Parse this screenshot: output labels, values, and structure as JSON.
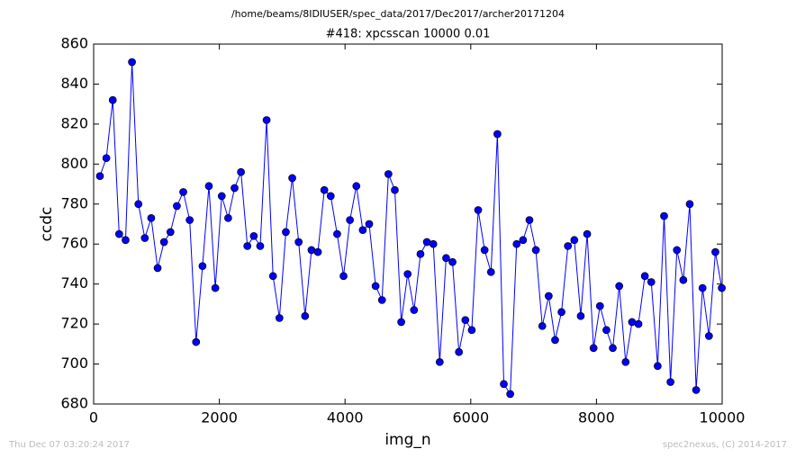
{
  "chart_data": {
    "type": "line",
    "title": "/home/beams/8IDIUSER/spec_data/2017/Dec2017/archer20171204",
    "subtitle": "#418: xpcsscan 10000 0.01",
    "xlabel": "img_n",
    "ylabel": "ccdc",
    "footer_left": "Thu Dec 07 03:20:24 2017",
    "footer_right": "spec2nexus, (C) 2014-2017",
    "color": "#0000ff",
    "marker": "circle",
    "x": [
      100,
      202,
      304,
      406,
      508,
      610,
      712,
      814,
      916,
      1018,
      1120,
      1222,
      1324,
      1426,
      1528,
      1630,
      1732,
      1834,
      1936,
      2038,
      2140,
      2242,
      2344,
      2446,
      2548,
      2650,
      2752,
      2854,
      2956,
      3058,
      3160,
      3262,
      3364,
      3466,
      3568,
      3670,
      3772,
      3874,
      3976,
      4078,
      4180,
      4282,
      4384,
      4486,
      4588,
      4690,
      4792,
      4894,
      4996,
      5098,
      5200,
      5302,
      5404,
      5506,
      5608,
      5710,
      5812,
      5914,
      6016,
      6118,
      6220,
      6322,
      6424,
      6526,
      6628,
      6730,
      6832,
      6934,
      7036,
      7138,
      7240,
      7342,
      7444,
      7546,
      7648,
      7750,
      7852,
      7954,
      8056,
      8158,
      8260,
      8362,
      8464,
      8566,
      8668,
      8770,
      8872,
      8974,
      9076,
      9178,
      9280,
      9382,
      9484,
      9586,
      9688,
      9790,
      9892,
      9994
    ],
    "values": [
      794,
      803,
      832,
      765,
      762,
      851,
      780,
      763,
      773,
      748,
      761,
      766,
      779,
      786,
      772,
      711,
      749,
      789,
      738,
      784,
      773,
      788,
      796,
      759,
      764,
      759,
      822,
      744,
      723,
      766,
      793,
      761,
      724,
      757,
      756,
      787,
      784,
      765,
      744,
      772,
      789,
      767,
      770,
      739,
      732,
      795,
      787,
      721,
      745,
      727,
      755,
      761,
      760,
      701,
      753,
      751,
      706,
      722,
      717,
      777,
      757,
      746,
      815,
      690,
      685,
      760,
      762,
      772,
      757,
      719,
      734,
      712,
      726,
      759,
      762,
      724,
      765,
      708,
      729,
      717,
      708,
      739,
      701,
      721,
      720,
      744,
      741,
      699,
      774,
      691,
      757,
      742,
      780,
      687,
      738,
      714,
      756,
      738
    ],
    "xlim": [
      0,
      10000
    ],
    "xticks": [
      0,
      2000,
      4000,
      6000,
      8000,
      10000
    ],
    "ylim": [
      680,
      860
    ],
    "yticks": [
      680,
      700,
      720,
      740,
      760,
      780,
      800,
      820,
      840,
      860
    ]
  }
}
